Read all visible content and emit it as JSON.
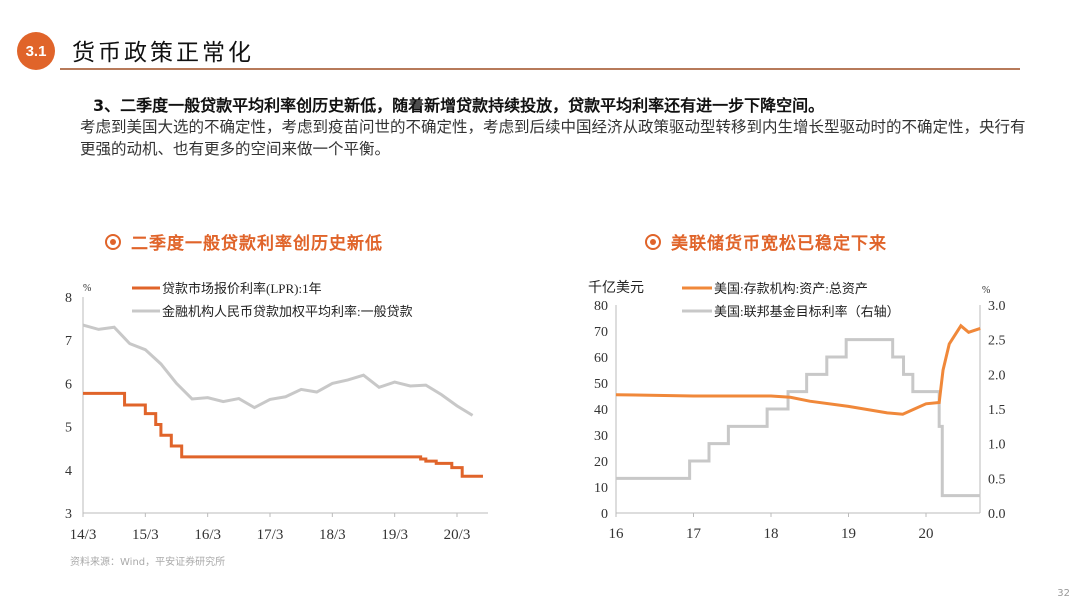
{
  "header": {
    "section_badge": "3.1",
    "title": "货币政策正常化"
  },
  "lead": "3、二季度一般贷款平均利率创历史新低，随着新增贷款持续投放，贷款平均利率还有进一步下降空间。",
  "body": "考虑到美国大选的不确定性，考虑到疫苗问世的不确定性，考虑到后续中国经济从政策驱动型转移到内生增长型驱动时的不确定性，央行有更强的动机、也有更多的空间来做一个平衡。",
  "source": "资料来源：Wind，平安证券研究所",
  "page_number": "32",
  "colors": {
    "accent": "#e0642a",
    "gray_series": "#c8c8c8"
  },
  "chart_data": [
    {
      "type": "line",
      "title": "二季度一般贷款利率创历史新低",
      "ylabel": "%",
      "ylim": [
        3,
        8
      ],
      "yticks": [
        "3",
        "4",
        "5",
        "6",
        "7",
        "8"
      ],
      "xticks": [
        "14/3",
        "15/3",
        "16/3",
        "17/3",
        "18/3",
        "19/3",
        "20/3"
      ],
      "xlim": [
        "2014-03",
        "2020-09"
      ],
      "legend": "top",
      "grid": false,
      "series": [
        {
          "name": "贷款市场报价利率(LPR):1年",
          "color": "#e0642a",
          "step": true,
          "points": [
            [
              "2014-03",
              5.77
            ],
            [
              "2014-11",
              5.5
            ],
            [
              "2015-03",
              5.3
            ],
            [
              "2015-05",
              5.05
            ],
            [
              "2015-06",
              4.8
            ],
            [
              "2015-08",
              4.55
            ],
            [
              "2015-10",
              4.3
            ],
            [
              "2019-08",
              4.25
            ],
            [
              "2019-09",
              4.2
            ],
            [
              "2019-11",
              4.15
            ],
            [
              "2020-02",
              4.05
            ],
            [
              "2020-04",
              3.85
            ],
            [
              "2020-08",
              3.85
            ]
          ]
        },
        {
          "name": "金融机构人民币贷款加权平均利率:一般贷款",
          "color": "#c8c8c8",
          "step": false,
          "points": [
            [
              "2014-03",
              7.35
            ],
            [
              "2014-06",
              7.25
            ],
            [
              "2014-09",
              7.3
            ],
            [
              "2014-12",
              6.92
            ],
            [
              "2015-03",
              6.78
            ],
            [
              "2015-06",
              6.45
            ],
            [
              "2015-09",
              6.0
            ],
            [
              "2015-12",
              5.64
            ],
            [
              "2016-03",
              5.67
            ],
            [
              "2016-06",
              5.58
            ],
            [
              "2016-09",
              5.65
            ],
            [
              "2016-12",
              5.44
            ],
            [
              "2017-03",
              5.63
            ],
            [
              "2017-06",
              5.69
            ],
            [
              "2017-09",
              5.86
            ],
            [
              "2017-12",
              5.8
            ],
            [
              "2018-03",
              6.0
            ],
            [
              "2018-06",
              6.08
            ],
            [
              "2018-09",
              6.19
            ],
            [
              "2018-12",
              5.91
            ],
            [
              "2019-03",
              6.03
            ],
            [
              "2019-06",
              5.94
            ],
            [
              "2019-09",
              5.96
            ],
            [
              "2019-12",
              5.74
            ],
            [
              "2020-03",
              5.48
            ],
            [
              "2020-06",
              5.26
            ]
          ]
        }
      ]
    },
    {
      "type": "line",
      "title": "美联储货币宽松已稳定下来",
      "ylabel": "千亿美元",
      "y2label": "%",
      "ylim": [
        0,
        80
      ],
      "y2lim": [
        0,
        3
      ],
      "yticks": [
        "0",
        "10",
        "20",
        "30",
        "40",
        "50",
        "60",
        "70",
        "80"
      ],
      "y2ticks": [
        "0.0",
        "0.5",
        "1.0",
        "1.5",
        "2.0",
        "2.5",
        "3.0"
      ],
      "xticks": [
        "16",
        "17",
        "18",
        "19",
        "20"
      ],
      "xlim": [
        2016,
        2020.7
      ],
      "legend": "top",
      "grid": false,
      "series": [
        {
          "name": "美国:存款机构:资产:总资产",
          "color": "#f0883a",
          "axis": "left",
          "step": false,
          "points": [
            [
              2016,
              45.5
            ],
            [
              2017,
              45
            ],
            [
              2018,
              45
            ],
            [
              2018.25,
              44.5
            ],
            [
              2018.5,
              43
            ],
            [
              2019,
              41
            ],
            [
              2019.5,
              38.5
            ],
            [
              2019.7,
              38
            ],
            [
              2019.85,
              40
            ],
            [
              2020.0,
              42
            ],
            [
              2020.17,
              42.5
            ],
            [
              2020.22,
              55
            ],
            [
              2020.3,
              65
            ],
            [
              2020.45,
              72
            ],
            [
              2020.55,
              69.5
            ],
            [
              2020.7,
              71
            ]
          ]
        },
        {
          "name": "美国:联邦基金目标利率（右轴）",
          "color": "#c8c8c8",
          "axis": "right",
          "step": true,
          "points": [
            [
              2016,
              0.5
            ],
            [
              2016.95,
              0.75
            ],
            [
              2017.2,
              1.0
            ],
            [
              2017.45,
              1.25
            ],
            [
              2017.95,
              1.5
            ],
            [
              2018.22,
              1.75
            ],
            [
              2018.46,
              2.0
            ],
            [
              2018.72,
              2.25
            ],
            [
              2018.97,
              2.5
            ],
            [
              2019.57,
              2.25
            ],
            [
              2019.71,
              2.0
            ],
            [
              2019.83,
              1.75
            ],
            [
              2020.17,
              1.25
            ],
            [
              2020.21,
              0.25
            ],
            [
              2020.7,
              0.25
            ]
          ]
        }
      ]
    }
  ]
}
